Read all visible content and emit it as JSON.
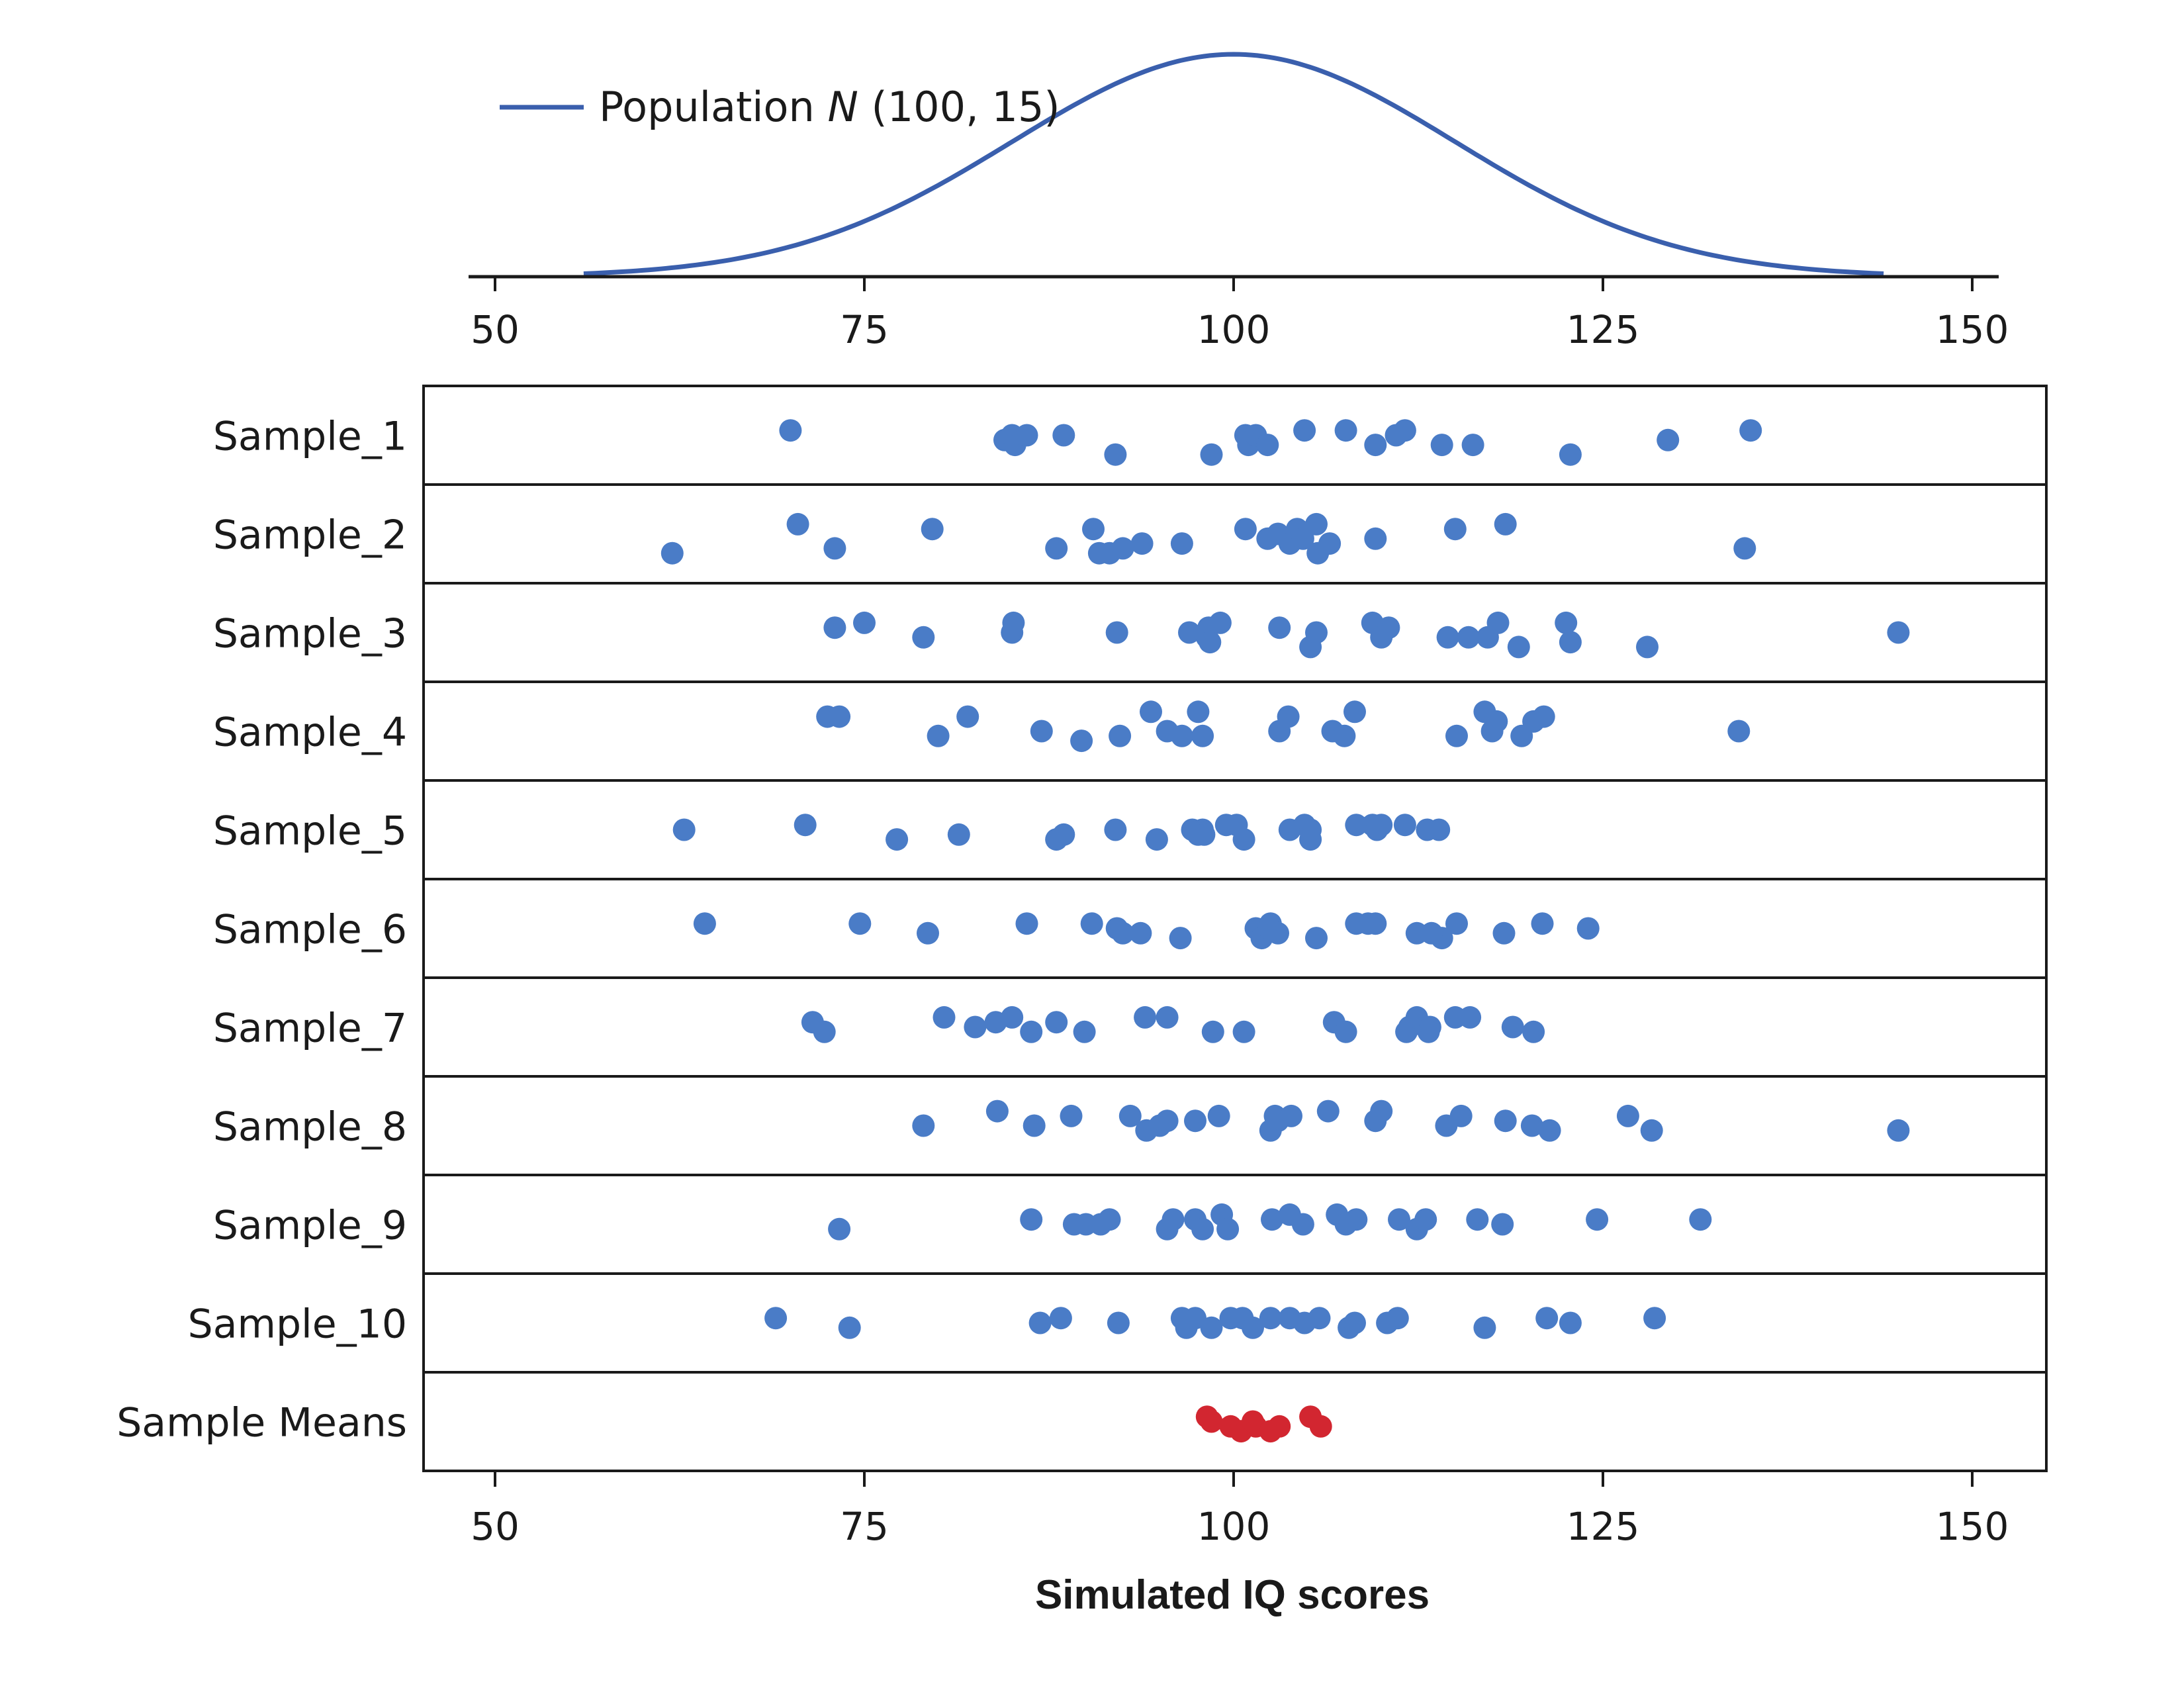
{
  "chart_data": {
    "type": "scatter",
    "title": "",
    "xlabel": "Simulated IQ scores",
    "xlim": [
      45,
      155
    ],
    "xticks": [
      50,
      75,
      100,
      125,
      150
    ],
    "population": {
      "legend_label": "Population ",
      "legend_symbol": "N",
      "legend_params": " (100, 15)",
      "mean": 100,
      "sd": 15,
      "x_range": [
        56,
        144
      ],
      "color": "#3a5fad"
    },
    "point_color": "#4a7cc7",
    "means_color": "#d22630",
    "series": [
      {
        "name": "Sample_1",
        "values": [
          70,
          84.5,
          85.2,
          85,
          86,
          88.5,
          92,
          98.5,
          101,
          100.8,
          101.5,
          102.3,
          104.8,
          107.6,
          109.6,
          111,
          111.6,
          114.1,
          116.2,
          122.8,
          129.4,
          135
        ],
        "jitter": [
          0.6,
          0.4,
          0.3,
          0.5,
          0.5,
          0.5,
          0.1,
          0.1,
          0.3,
          0.5,
          0.5,
          0.3,
          0.6,
          0.6,
          0.3,
          0.5,
          0.6,
          0.3,
          0.3,
          0.1,
          0.4,
          0.6
        ]
      },
      {
        "name": "Sample_2",
        "values": [
          62,
          70.5,
          73,
          79.6,
          88,
          90.5,
          90.9,
          91.6,
          92.5,
          93.8,
          96.5,
          100.8,
          102.3,
          103,
          103.8,
          104.3,
          104.7,
          105.6,
          105.7,
          106.5,
          109.6,
          115,
          118.4,
          134.6
        ],
        "jitter": [
          0.1,
          0.7,
          0.2,
          0.6,
          0.2,
          0.6,
          0.1,
          0.1,
          0.2,
          0.3,
          0.3,
          0.6,
          0.4,
          0.5,
          0.3,
          0.6,
          0.4,
          0.7,
          0.1,
          0.3,
          0.4,
          0.6,
          0.7,
          0.2
        ]
      },
      {
        "name": "Sample_3",
        "values": [
          73,
          75,
          79,
          85.1,
          85,
          92.1,
          97,
          98.3,
          98.2,
          98.4,
          99.1,
          103.1,
          105.2,
          105.6,
          109.4,
          110,
          110.5,
          114.5,
          115.9,
          117.2,
          117.9,
          119.3,
          122.5,
          122.8,
          128,
          145
        ],
        "jitter": [
          0.6,
          0.7,
          0.4,
          0.7,
          0.5,
          0.5,
          0.5,
          0.6,
          0.4,
          0.3,
          0.7,
          0.6,
          0.2,
          0.5,
          0.7,
          0.4,
          0.6,
          0.4,
          0.4,
          0.4,
          0.7,
          0.2,
          0.7,
          0.3,
          0.2,
          0.5
        ]
      },
      {
        "name": "Sample_4",
        "values": [
          72.5,
          73.3,
          80,
          82,
          87,
          89.7,
          92.3,
          94.4,
          95.5,
          96.5,
          97.6,
          97.9,
          103.1,
          103.7,
          106.7,
          107.5,
          108.2,
          115.1,
          117,
          117.8,
          117.5,
          119.5,
          120.3,
          121,
          134.2
        ],
        "jitter": [
          0.8,
          0.8,
          0.4,
          0.8,
          0.5,
          0.3,
          0.4,
          0.9,
          0.5,
          0.4,
          0.9,
          0.4,
          0.5,
          0.8,
          0.5,
          0.4,
          0.9,
          0.4,
          0.9,
          0.7,
          0.5,
          0.4,
          0.7,
          0.8,
          0.5
        ]
      },
      {
        "name": "Sample_5",
        "values": [
          62.8,
          71,
          77.2,
          81.4,
          88,
          88.5,
          92,
          94.8,
          97.2,
          97.6,
          97.9,
          98,
          99.5,
          100.2,
          100.7,
          103.8,
          104.8,
          105.2,
          105.2,
          108.3,
          109.4,
          109.7,
          110,
          111.6,
          113.1,
          113.9
        ],
        "jitter": [
          0.5,
          0.6,
          0.3,
          0.4,
          0.3,
          0.4,
          0.5,
          0.3,
          0.5,
          0.4,
          0.5,
          0.4,
          0.6,
          0.6,
          0.3,
          0.5,
          0.6,
          0.5,
          0.3,
          0.6,
          0.6,
          0.5,
          0.6,
          0.6,
          0.5,
          0.5
        ]
      },
      {
        "name": "Sample_6",
        "values": [
          64.2,
          74.7,
          79.3,
          86,
          90.4,
          92.1,
          92.5,
          93.7,
          96.4,
          101.5,
          101.9,
          102.5,
          103,
          102.4,
          105.6,
          108.3,
          109.1,
          109.6,
          112.4,
          114.1,
          113.4,
          115.1,
          118.3,
          120.9,
          124
        ],
        "jitter": [
          0.6,
          0.6,
          0.4,
          0.6,
          0.6,
          0.5,
          0.4,
          0.4,
          0.3,
          0.5,
          0.3,
          0.6,
          0.4,
          0.5,
          0.3,
          0.6,
          0.6,
          0.6,
          0.4,
          0.3,
          0.4,
          0.6,
          0.4,
          0.6,
          0.5
        ]
      },
      {
        "name": "Sample_7",
        "values": [
          71.5,
          72.3,
          80.4,
          82.5,
          83.9,
          85,
          86.3,
          88,
          89.9,
          94,
          95.5,
          98.6,
          100.7,
          106.8,
          107.6,
          111.7,
          111.9,
          112.4,
          113,
          113.3,
          113.2,
          115,
          116,
          118.9,
          120.3
        ],
        "jitter": [
          0.6,
          0.4,
          0.7,
          0.5,
          0.6,
          0.7,
          0.4,
          0.6,
          0.4,
          0.7,
          0.7,
          0.4,
          0.4,
          0.6,
          0.4,
          0.4,
          0.5,
          0.7,
          0.5,
          0.5,
          0.4,
          0.7,
          0.7,
          0.5,
          0.4
        ]
      },
      {
        "name": "Sample_8",
        "values": [
          79,
          84,
          86.5,
          89,
          93,
          94.1,
          95,
          95.5,
          97.4,
          99,
          102.5,
          102.8,
          103,
          103.9,
          106.4,
          109.6,
          110,
          114.4,
          115.4,
          118.4,
          120.2,
          121.4,
          126.7,
          128.3,
          145
        ],
        "jitter": [
          0.5,
          0.8,
          0.5,
          0.7,
          0.7,
          0.4,
          0.5,
          0.6,
          0.6,
          0.7,
          0.4,
          0.7,
          0.6,
          0.7,
          0.8,
          0.6,
          0.8,
          0.5,
          0.7,
          0.6,
          0.5,
          0.4,
          0.7,
          0.4,
          0.4
        ]
      },
      {
        "name": "Sample_9",
        "values": [
          73.3,
          86.3,
          89.2,
          90,
          91,
          91.6,
          95.5,
          95.9,
          97.4,
          97.9,
          99.2,
          99.6,
          102.6,
          103.8,
          104.7,
          107,
          107.6,
          108.3,
          111.2,
          112.4,
          113,
          116.5,
          118.2,
          124.6,
          131.6
        ],
        "jitter": [
          0.4,
          0.6,
          0.5,
          0.5,
          0.5,
          0.6,
          0.4,
          0.6,
          0.6,
          0.4,
          0.7,
          0.4,
          0.6,
          0.7,
          0.5,
          0.7,
          0.5,
          0.6,
          0.6,
          0.4,
          0.6,
          0.6,
          0.5,
          0.6,
          0.6
        ]
      },
      {
        "name": "Sample_10",
        "values": [
          69,
          74,
          86.9,
          88.3,
          92.2,
          96.5,
          96.8,
          97.4,
          98.5,
          99.8,
          100.6,
          101.3,
          102.5,
          103.8,
          104.8,
          105.8,
          107.8,
          108.2,
          110.4,
          111.1,
          117,
          121.2,
          122.8,
          128.5
        ],
        "jitter": [
          0.6,
          0.4,
          0.5,
          0.6,
          0.5,
          0.6,
          0.4,
          0.6,
          0.4,
          0.6,
          0.6,
          0.4,
          0.6,
          0.6,
          0.5,
          0.6,
          0.4,
          0.5,
          0.5,
          0.6,
          0.4,
          0.6,
          0.5,
          0.6
        ]
      },
      {
        "name": "Sample Means",
        "values": [
          98.2,
          98.5,
          99.8,
          100.5,
          101.5,
          101.3,
          102.5,
          103.1,
          105.2,
          105.9
        ],
        "jitter": [
          0.6,
          0.5,
          0.4,
          0.3,
          0.4,
          0.5,
          0.3,
          0.4,
          0.6,
          0.4
        ]
      }
    ]
  }
}
